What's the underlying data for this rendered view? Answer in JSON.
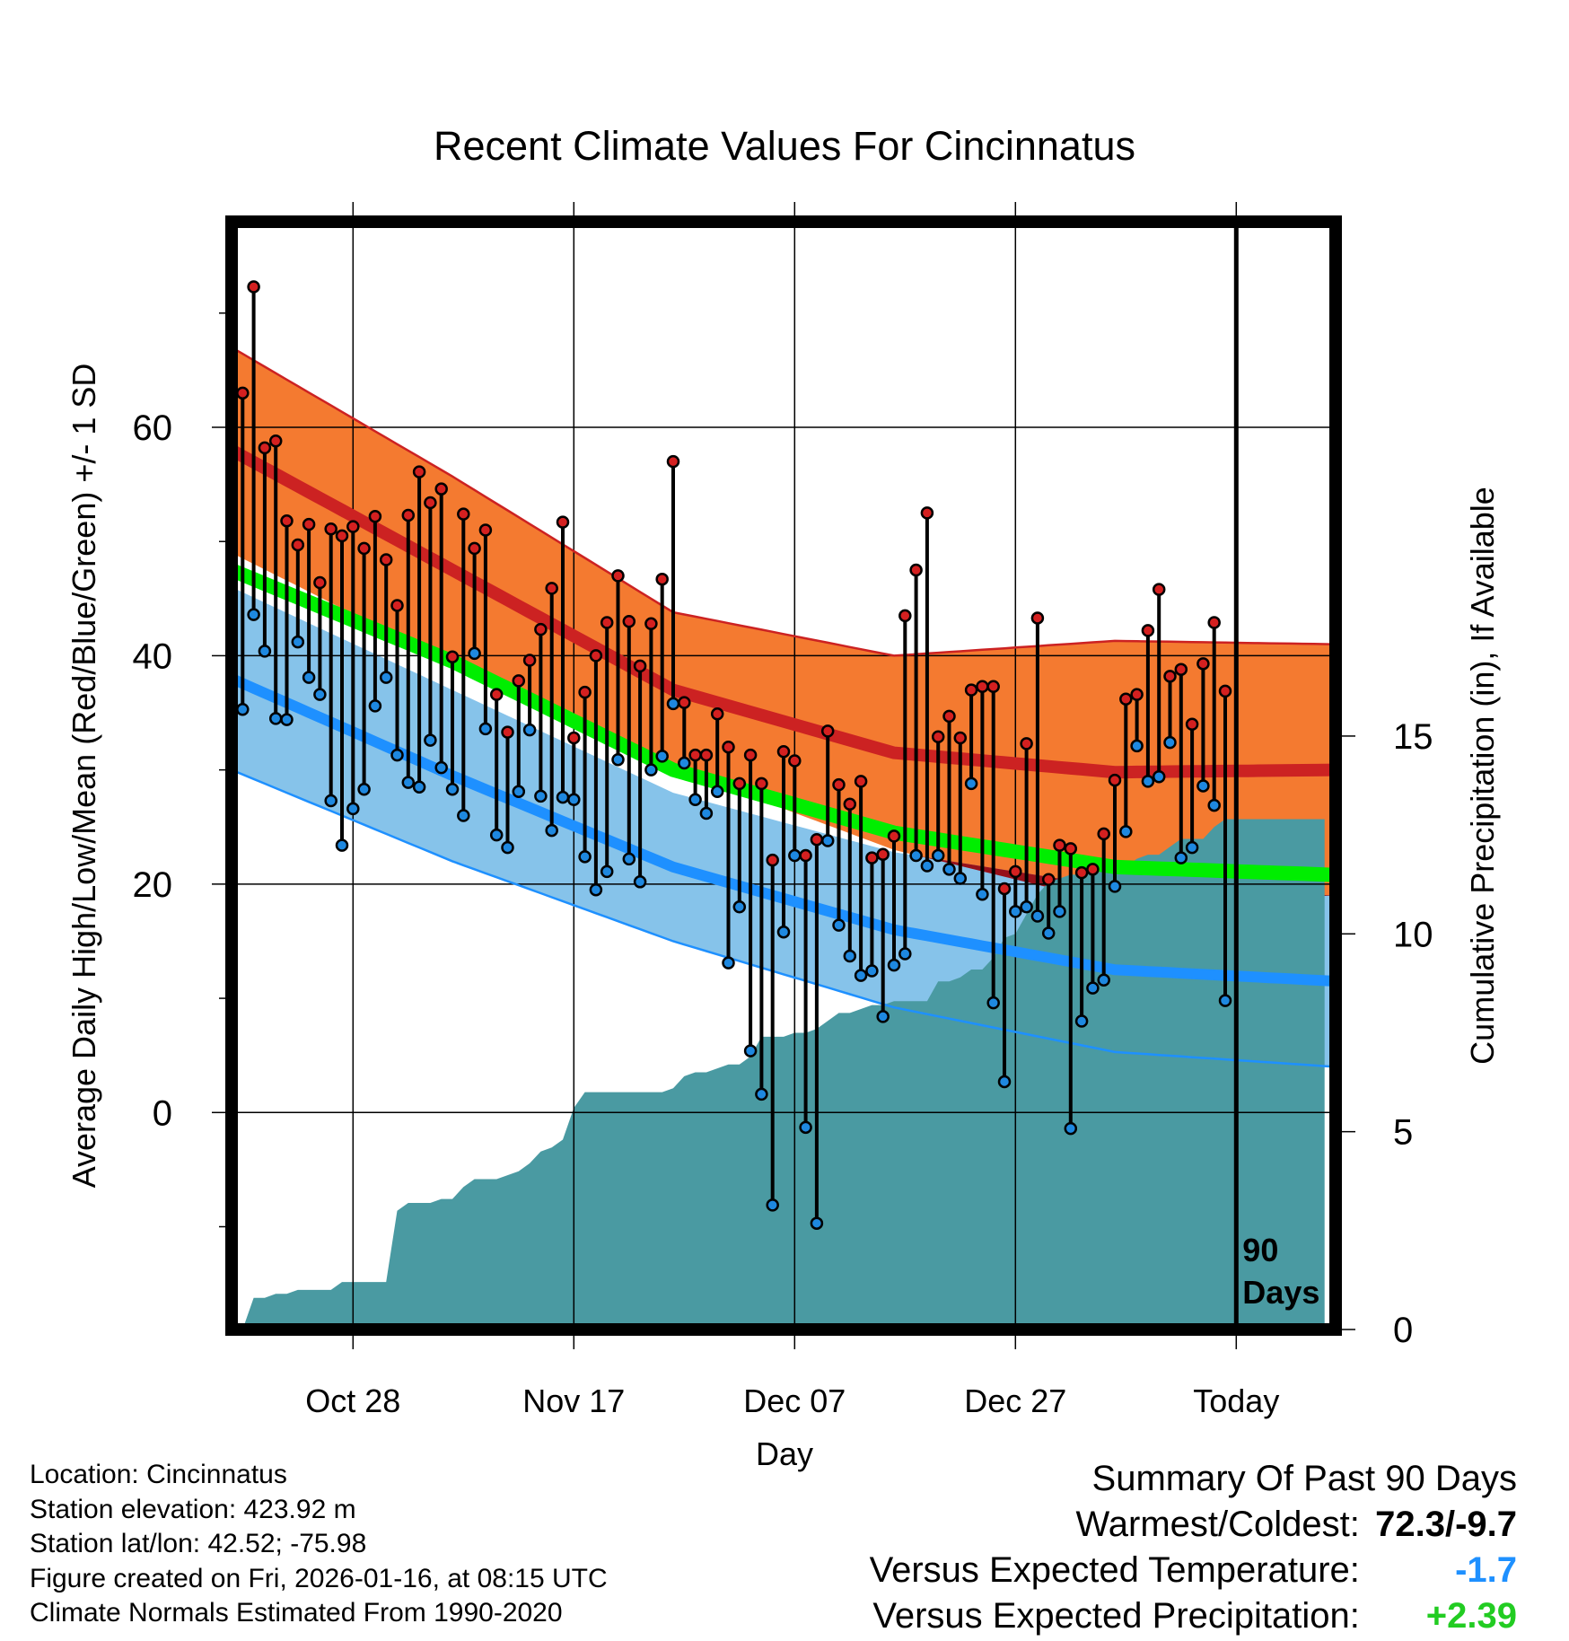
{
  "chart_data": {
    "type": "line",
    "title": "Recent Climate Values For Cincinnatus",
    "xlabel": "Day",
    "ylabel": "Average Daily High/Low/Mean (Red/Blue/Green) +/- 1 SD",
    "y2label": "Cumulative Precipitation (in), If Available",
    "xtick_labels": [
      "Oct 28",
      "Nov 17",
      "Dec 07",
      "Dec 27",
      "Today"
    ],
    "xticks_day": [
      11,
      31,
      51,
      71,
      91
    ],
    "xlim": [
      0,
      100
    ],
    "ylim": [
      -19,
      78
    ],
    "y_ticks": [
      0,
      20,
      40,
      60
    ],
    "y2lim": [
      0,
      28
    ],
    "y2_ticks": [
      0,
      5,
      10,
      15
    ],
    "today_marker": {
      "day": 91,
      "label_line1": "90",
      "label_line2": "Days"
    },
    "normals": {
      "days": [
        0,
        20,
        40,
        60,
        80,
        100
      ],
      "high_mean": [
        58,
        47.5,
        37,
        31.5,
        29.8,
        30
      ],
      "high_sd": [
        9,
        8.2,
        6.8,
        8.5,
        11.5,
        11
      ],
      "low_mean": [
        38,
        29.5,
        21.5,
        16,
        12.5,
        11.5
      ],
      "low_sd": [
        8,
        7.5,
        6.5,
        6.8,
        7.2,
        7.5
      ],
      "avg_mean": [
        47.5,
        39.5,
        30,
        24.5,
        21.5,
        20.8
      ]
    },
    "series": [
      {
        "name": "Daily High",
        "values": [
          63.0,
          72.3,
          58.2,
          58.8,
          51.8,
          49.7,
          51.5,
          46.4,
          51.1,
          50.5,
          51.3,
          49.4,
          52.2,
          48.4,
          44.4,
          52.3,
          56.1,
          53.4,
          54.6,
          39.9,
          52.4,
          49.4,
          51.0,
          36.6,
          33.3,
          37.8,
          39.6,
          42.3,
          45.9,
          51.7,
          32.8,
          36.8,
          40.0,
          42.9,
          47.0,
          43.0,
          39.1,
          42.8,
          46.7,
          57.0,
          35.9,
          31.3,
          31.3,
          34.9,
          32.0,
          28.8,
          31.3,
          28.8,
          22.1,
          31.6,
          30.8,
          22.5,
          23.9,
          33.4,
          28.7,
          27.0,
          29.0,
          22.3,
          22.6,
          24.2,
          43.5,
          47.5,
          52.5,
          32.9,
          34.7,
          32.8,
          37.0,
          37.3,
          37.3,
          19.6,
          21.1,
          32.3,
          43.3,
          20.4,
          23.4,
          23.1,
          21.0,
          21.3,
          24.4,
          29.1,
          36.2,
          36.6,
          42.2,
          45.8,
          38.2,
          38.8,
          34.0,
          39.3,
          42.9,
          36.9
        ]
      },
      {
        "name": "Daily Low",
        "values": [
          35.3,
          43.6,
          40.4,
          34.5,
          34.4,
          41.2,
          38.1,
          36.6,
          27.3,
          23.4,
          26.6,
          28.3,
          35.6,
          38.1,
          31.3,
          28.9,
          28.5,
          32.6,
          30.2,
          28.3,
          26.0,
          40.2,
          33.6,
          24.3,
          23.2,
          28.1,
          33.5,
          27.7,
          24.7,
          27.6,
          27.4,
          22.4,
          19.5,
          21.1,
          30.9,
          22.2,
          20.2,
          30.0,
          31.2,
          35.8,
          30.6,
          27.4,
          26.2,
          28.1,
          13.1,
          18.0,
          5.4,
          1.6,
          -8.1,
          15.8,
          22.5,
          -1.3,
          -9.7,
          23.8,
          16.4,
          13.7,
          12.0,
          12.4,
          8.4,
          12.9,
          13.9,
          22.5,
          21.6,
          22.5,
          21.3,
          20.5,
          28.8,
          19.1,
          9.6,
          2.7,
          17.6,
          18.0,
          17.2,
          15.7,
          17.6,
          -1.4,
          8.0,
          10.9,
          11.6,
          19.8,
          24.6,
          32.1,
          29.0,
          29.4,
          32.4,
          22.3,
          23.2,
          28.6,
          26.9,
          9.8
        ]
      },
      {
        "name": "Cumulative Precipitation",
        "values": [
          0,
          0,
          0.8,
          0.8,
          0.9,
          0.9,
          1.0,
          1.0,
          1.0,
          1.0,
          1.2,
          1.2,
          1.2,
          1.2,
          1.2,
          3.0,
          3.2,
          3.2,
          3.2,
          3.3,
          3.3,
          3.6,
          3.8,
          3.8,
          3.8,
          3.9,
          4.0,
          4.2,
          4.5,
          4.6,
          4.8,
          5.6,
          6.0,
          6.0,
          6.0,
          6.0,
          6.0,
          6.0,
          6.0,
          6.0,
          6.1,
          6.4,
          6.5,
          6.5,
          6.6,
          6.7,
          6.7,
          6.9,
          7.4,
          7.4,
          7.4,
          7.5,
          7.5,
          7.6,
          7.8,
          8.0,
          8.0,
          8.1,
          8.2,
          8.2,
          8.3,
          8.3,
          8.3,
          8.3,
          8.8,
          8.8,
          8.9,
          9.1,
          9.1,
          9.4,
          9.9,
          10.0,
          10.5,
          11.0,
          11.3,
          11.4,
          11.5,
          11.5,
          11.6,
          11.6,
          11.6,
          11.7,
          11.9,
          12.0,
          12.0,
          12.2,
          12.4,
          12.4,
          12.4,
          12.7,
          12.9,
          12.9,
          12.9,
          12.9,
          12.9,
          12.9,
          12.9,
          12.9,
          12.9,
          12.9
        ]
      }
    ]
  },
  "footer": {
    "location": "Location: Cincinnatus",
    "elevation": "Station elevation: 423.92 m",
    "latlon": "Station lat/lon: 42.52; -75.98",
    "created": "Figure created on Fri, 2026-01-16, at 08:15 UTC",
    "normals": "Climate Normals Estimated From 1990-2020"
  },
  "summary": {
    "title": "Summary Of Past 90 Days",
    "warm_cold_label": "Warmest/Coldest:",
    "warm_cold_value": "72.3/-9.7",
    "temp_label": "Versus Expected Temperature:",
    "temp_value": "-1.7",
    "precip_label": "Versus Expected Precipitation:",
    "precip_value": "+2.39"
  },
  "colors": {
    "high_band": "#f47a30",
    "high_line": "#cc2222",
    "overlap_band": "#96101a",
    "mean_line": "#00ee00",
    "low_band": "#86c3ea",
    "low_line": "#1e90ff",
    "precip": "#4a9aa2",
    "high_dot": "#d42020",
    "low_dot": "#1e88e0"
  }
}
